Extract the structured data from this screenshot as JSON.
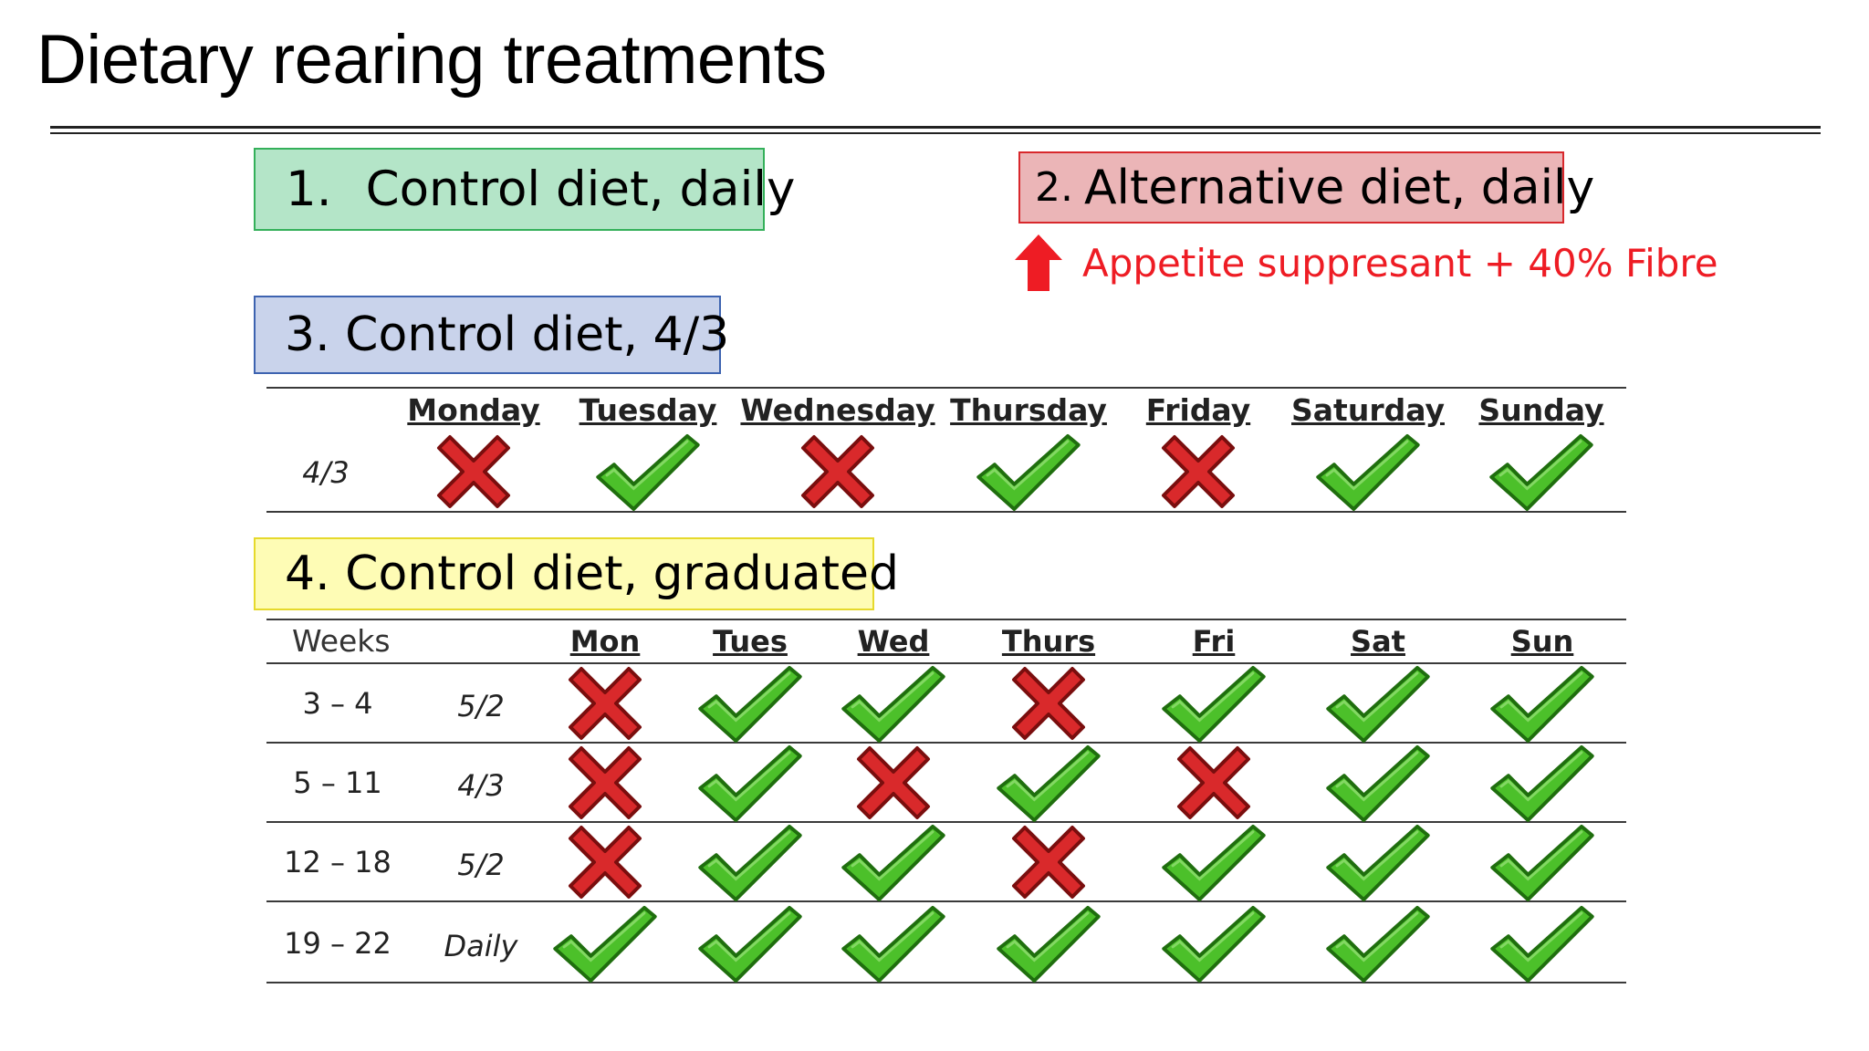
{
  "title": "Dietary rearing treatments",
  "treatments": {
    "t1": {
      "num": "1.",
      "label": "Control diet, daily",
      "color": "#b4e5c8"
    },
    "t2": {
      "num": "2.",
      "label": "Alternative diet, daily",
      "color": "#ebb5b7"
    },
    "t2_note": {
      "icon": "red-up-arrow-icon",
      "text": "Appetite suppresant + 40% Fibre",
      "color": "#ee1c24"
    },
    "t3": {
      "label": "3. Control diet, 4/3",
      "color": "#c9d3eb"
    },
    "t4": {
      "label": "4. Control diet, graduated",
      "color": "#fefcb5"
    }
  },
  "schedule43": {
    "days": [
      "Monday",
      "Tuesday",
      "Wednesday",
      "Thursday",
      "Friday",
      "Saturday",
      "Sunday"
    ],
    "row_label": "4/3",
    "marks": [
      "cross",
      "check",
      "cross",
      "check",
      "cross",
      "check",
      "check"
    ]
  },
  "graduated": {
    "weeks_label": "Weeks",
    "days": [
      "Mon",
      "Tues",
      "Wed",
      "Thurs",
      "Fri",
      "Sat",
      "Sun"
    ],
    "rows": [
      {
        "weeks": "3 – 4",
        "pattern": "5/2",
        "marks": [
          "cross",
          "check",
          "check",
          "cross",
          "check",
          "check",
          "check"
        ]
      },
      {
        "weeks": "5 – 11",
        "pattern": "4/3",
        "marks": [
          "cross",
          "check",
          "cross",
          "check",
          "cross",
          "check",
          "check"
        ]
      },
      {
        "weeks": "12 – 18",
        "pattern": "5/2",
        "marks": [
          "cross",
          "check",
          "check",
          "cross",
          "check",
          "check",
          "check"
        ]
      },
      {
        "weeks": "19 – 22",
        "pattern": "Daily",
        "marks": [
          "check",
          "check",
          "check",
          "check",
          "check",
          "check",
          "check"
        ]
      }
    ]
  },
  "icons": {
    "check": "green-check-icon",
    "cross": "red-cross-icon"
  },
  "colors": {
    "check_fill": "#4cc02a",
    "check_outline": "#1f6e0e",
    "cross_fill": "#d9292b",
    "cross_outline": "#7a0e0e"
  }
}
